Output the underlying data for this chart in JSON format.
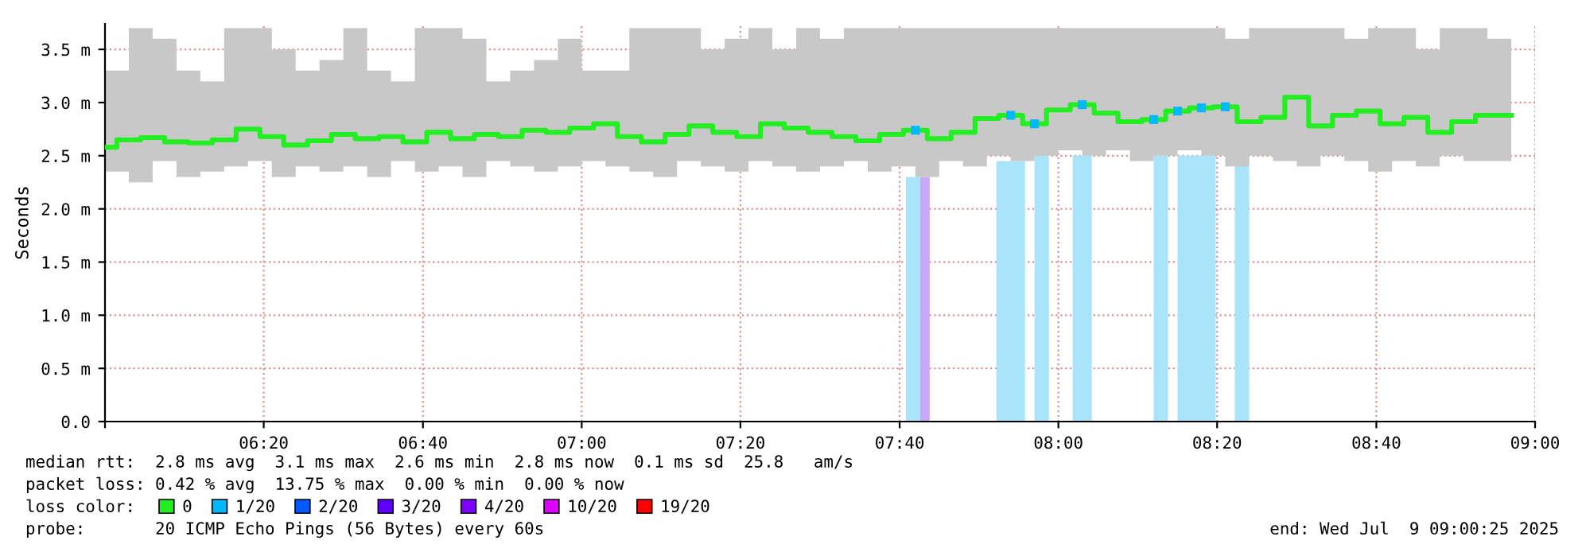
{
  "chart_data": {
    "type": "step",
    "ylabel": "Seconds",
    "x": [
      6.0,
      6.05,
      6.1,
      6.15,
      6.2,
      6.25,
      6.3,
      6.35,
      6.4,
      6.45,
      6.5,
      6.55,
      6.6,
      6.65,
      6.7,
      6.75,
      6.8,
      6.85,
      6.9,
      6.95,
      7.0,
      7.05,
      7.1,
      7.15,
      7.2,
      7.25,
      7.3,
      7.35,
      7.4,
      7.45,
      7.5,
      7.55,
      7.6,
      7.65,
      7.7,
      7.75,
      7.8,
      7.85,
      7.9,
      7.95,
      8.0,
      8.05,
      8.1,
      8.15,
      8.2,
      8.25,
      8.3,
      8.35,
      8.4,
      8.45,
      8.5,
      8.55,
      8.6,
      8.65,
      8.7,
      8.75,
      8.8,
      8.85,
      8.9,
      8.95
    ],
    "series": [
      {
        "name": "0",
        "color": "#22ee22",
        "values": [
          2.58,
          2.65,
          2.67,
          2.63,
          2.62,
          2.65,
          2.75,
          2.68,
          2.6,
          2.64,
          2.7,
          2.66,
          2.68,
          2.63,
          2.72,
          2.66,
          2.7,
          2.68,
          2.74,
          2.72,
          2.76,
          2.8,
          2.68,
          2.63,
          2.7,
          2.78,
          2.72,
          2.68,
          2.8,
          2.76,
          2.72,
          2.68,
          2.64,
          2.7,
          2.74,
          2.66,
          2.72,
          2.85,
          2.88,
          2.8,
          2.93,
          2.98,
          2.9,
          2.82,
          2.84,
          2.92,
          2.95,
          2.96,
          2.82,
          2.86,
          3.05,
          2.78,
          2.88,
          2.92,
          2.8,
          2.86,
          2.72,
          2.82,
          2.88,
          2.88
        ],
        "lower": [
          2.35,
          2.25,
          2.45,
          2.3,
          2.35,
          2.4,
          2.45,
          2.3,
          2.4,
          2.35,
          2.4,
          2.3,
          2.45,
          2.35,
          2.4,
          2.3,
          2.45,
          2.4,
          2.35,
          2.4,
          2.45,
          2.4,
          2.35,
          2.3,
          2.45,
          2.4,
          2.35,
          2.45,
          2.4,
          2.35,
          2.4,
          2.45,
          2.35,
          2.4,
          2.3,
          2.45,
          2.4,
          2.5,
          2.45,
          2.5,
          2.55,
          2.5,
          2.55,
          2.45,
          2.5,
          2.55,
          2.5,
          2.4,
          2.5,
          2.45,
          2.4,
          2.5,
          2.45,
          2.35,
          2.45,
          2.4,
          2.5,
          2.45,
          2.45,
          2.5
        ],
        "upper": [
          3.3,
          3.7,
          3.6,
          3.3,
          3.2,
          3.7,
          3.7,
          3.5,
          3.3,
          3.4,
          3.7,
          3.3,
          3.2,
          3.7,
          3.7,
          3.6,
          3.2,
          3.3,
          3.4,
          3.6,
          3.3,
          3.3,
          3.7,
          3.7,
          3.7,
          3.5,
          3.6,
          3.7,
          3.5,
          3.7,
          3.6,
          3.7,
          3.7,
          3.7,
          3.7,
          3.7,
          3.7,
          3.7,
          3.7,
          3.7,
          3.7,
          3.7,
          3.7,
          3.7,
          3.7,
          3.7,
          3.7,
          3.6,
          3.7,
          3.7,
          3.7,
          3.7,
          3.6,
          3.7,
          3.7,
          3.5,
          3.7,
          3.7,
          3.6,
          3.5
        ]
      },
      {
        "name": "1/20",
        "color": "#00b8ff",
        "type": "scatter",
        "marker": "square",
        "values": [
          null,
          null,
          null,
          null,
          null,
          null,
          null,
          null,
          null,
          null,
          null,
          null,
          null,
          null,
          null,
          null,
          null,
          null,
          null,
          null,
          null,
          null,
          null,
          null,
          null,
          null,
          null,
          null,
          null,
          null,
          null,
          null,
          null,
          null,
          2.74,
          null,
          null,
          null,
          2.88,
          2.8,
          null,
          2.98,
          null,
          null,
          2.84,
          2.92,
          2.95,
          2.96,
          null,
          null,
          null,
          null,
          null,
          null,
          null,
          null,
          null,
          null,
          null,
          null
        ]
      },
      {
        "name": "2/20",
        "color": "#0059ff",
        "values": [
          null,
          null,
          null,
          null,
          null,
          null,
          null,
          null,
          null,
          null,
          null,
          null,
          null,
          null,
          null,
          null,
          null,
          null,
          null,
          null,
          null,
          null,
          null,
          null,
          null,
          null,
          null,
          null,
          null,
          null,
          null,
          null,
          null,
          null,
          null,
          null,
          null,
          null,
          null,
          null,
          null,
          null,
          null,
          null,
          null,
          null,
          null,
          null,
          null,
          null,
          null,
          null,
          null,
          null,
          null,
          null,
          null,
          null,
          null,
          null
        ]
      },
      {
        "name": "3/20",
        "color": "#5e00ff",
        "values": [
          null,
          null,
          null,
          null,
          null,
          null,
          null,
          null,
          null,
          null,
          null,
          null,
          null,
          null,
          null,
          null,
          null,
          null,
          null,
          null,
          null,
          null,
          null,
          null,
          null,
          null,
          null,
          null,
          null,
          null,
          null,
          null,
          null,
          null,
          null,
          null,
          null,
          null,
          null,
          null,
          null,
          null,
          null,
          null,
          null,
          null,
          null,
          null,
          null,
          null,
          null,
          null,
          null,
          null,
          null,
          null,
          null,
          null,
          null,
          null
        ]
      },
      {
        "name": "4/20",
        "color": "#7e00ff",
        "values": [
          null,
          null,
          null,
          null,
          null,
          null,
          null,
          null,
          null,
          null,
          null,
          null,
          null,
          null,
          null,
          null,
          null,
          null,
          null,
          null,
          null,
          null,
          null,
          null,
          null,
          null,
          null,
          null,
          null,
          null,
          null,
          null,
          null,
          null,
          null,
          null,
          null,
          null,
          null,
          null,
          null,
          null,
          null,
          null,
          null,
          null,
          null,
          null,
          null,
          null,
          null,
          null,
          null,
          null,
          null,
          null,
          null,
          null,
          null,
          null
        ]
      },
      {
        "name": "10/20",
        "color": "#dd00ff",
        "values": [
          null,
          null,
          null,
          null,
          null,
          null,
          null,
          null,
          null,
          null,
          null,
          null,
          null,
          null,
          null,
          null,
          null,
          null,
          null,
          null,
          null,
          null,
          null,
          null,
          null,
          null,
          null,
          null,
          null,
          null,
          null,
          null,
          null,
          null,
          null,
          null,
          null,
          null,
          null,
          null,
          null,
          null,
          null,
          null,
          null,
          null,
          null,
          null,
          null,
          null,
          null,
          null,
          null,
          null,
          null,
          null,
          null,
          null,
          null,
          null
        ]
      },
      {
        "name": "19/20",
        "color": "#ff0000",
        "values": [
          null,
          null,
          null,
          null,
          null,
          null,
          null,
          null,
          null,
          null,
          null,
          null,
          null,
          null,
          null,
          null,
          null,
          null,
          null,
          null,
          null,
          null,
          null,
          null,
          null,
          null,
          null,
          null,
          null,
          null,
          null,
          null,
          null,
          null,
          null,
          null,
          null,
          null,
          null,
          null,
          null,
          null,
          null,
          null,
          null,
          null,
          null,
          null,
          null,
          null,
          null,
          null,
          null,
          null,
          null,
          null,
          null,
          null,
          null,
          null
        ]
      }
    ],
    "bands": [
      {
        "axis": "x",
        "from": 7.68,
        "to": 7.71,
        "color": "#a8e4fa"
      },
      {
        "axis": "x",
        "from": 7.71,
        "to": 7.73,
        "color": "#c8a8f8"
      },
      {
        "axis": "x",
        "from": 7.87,
        "to": 7.93,
        "color": "#a8e4fa"
      },
      {
        "axis": "x",
        "from": 7.95,
        "to": 7.98,
        "color": "#a8e4fa"
      },
      {
        "axis": "x",
        "from": 8.03,
        "to": 8.07,
        "color": "#a8e4fa"
      },
      {
        "axis": "x",
        "from": 8.2,
        "to": 8.23,
        "color": "#a8e4fa"
      },
      {
        "axis": "x",
        "from": 8.25,
        "to": 8.33,
        "color": "#a8e4fa"
      },
      {
        "axis": "x",
        "from": 8.37,
        "to": 8.4,
        "color": "#a8e4fa"
      }
    ],
    "xlim": [
      6.0,
      9.0
    ],
    "xticks": [
      {
        "value": 6.0,
        "label": null
      },
      {
        "value": 6.333,
        "label": "06:20"
      },
      {
        "value": 6.667,
        "label": "06:40"
      },
      {
        "value": 7.0,
        "label": "07:00"
      },
      {
        "value": 7.333,
        "label": "07:20"
      },
      {
        "value": 7.667,
        "label": "07:40"
      },
      {
        "value": 8.0,
        "label": "08:00"
      },
      {
        "value": 8.333,
        "label": "08:20"
      },
      {
        "value": 8.667,
        "label": "08:40"
      },
      {
        "value": 9.0,
        "label": "09:00"
      }
    ],
    "ylim": [
      0,
      3.74
    ],
    "yticks": [
      {
        "value": 0,
        "label": "0.0"
      },
      {
        "value": 0.5,
        "label": "0.5 m"
      },
      {
        "value": 1.0,
        "label": "1.0 m"
      },
      {
        "value": 1.5,
        "label": "1.5 m"
      },
      {
        "value": 2.0,
        "label": "2.0 m"
      },
      {
        "value": 2.5,
        "label": "2.5 m"
      },
      {
        "value": 3.0,
        "label": "3.0 m"
      },
      {
        "value": 3.5,
        "label": "3.5 m"
      }
    ],
    "grid": true,
    "legend": "bottom",
    "legend_title": "loss color:",
    "annotations": [
      "median rtt:  2.8 ms avg  3.1 ms max  2.6 ms min  2.8 ms now  0.1 ms sd  25.8   am/s",
      "packet loss: 0.42 % avg  13.75 % max  0.00 % min  0.00 % now",
      "probe:       20 ICMP Echo Pings (56 Bytes) every 60s",
      "end: Wed Jul  9 09:00:25 2025"
    ]
  }
}
